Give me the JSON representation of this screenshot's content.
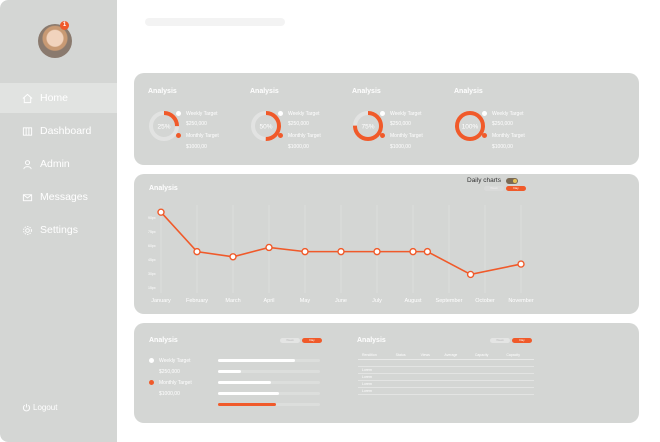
{
  "sidebar": {
    "items": [
      {
        "label": "Home",
        "icon": "home-icon",
        "active": true
      },
      {
        "label": "Dashboard",
        "icon": "columns-icon",
        "active": false
      },
      {
        "label": "Admin",
        "icon": "user-icon",
        "active": false
      },
      {
        "label": "Messages",
        "icon": "envelope-icon",
        "active": false
      },
      {
        "label": "Settings",
        "icon": "gear-icon",
        "active": false
      }
    ],
    "logout": "Logout",
    "badge": "1"
  },
  "stats": [
    {
      "title": "Analysis",
      "percent": "25%",
      "fraction": 0.25,
      "weekly_label": "Weekly Target",
      "weekly_value": "$250,000",
      "monthly_label": "Monthly Target",
      "monthly_value": "$1000,00"
    },
    {
      "title": "Analysis",
      "percent": "50%",
      "fraction": 0.5,
      "weekly_label": "Weekly Target",
      "weekly_value": "$250,000",
      "monthly_label": "Monthly Target",
      "monthly_value": "$1000,00"
    },
    {
      "title": "Analysis",
      "percent": "75%",
      "fraction": 0.75,
      "weekly_label": "Weekly Target",
      "weekly_value": "$250,000",
      "monthly_label": "Monthly Target",
      "monthly_value": "$1000,00"
    },
    {
      "title": "Analysis",
      "percent": "100%",
      "fraction": 1.0,
      "weekly_label": "Weekly Target",
      "weekly_value": "$250,000",
      "monthly_label": "Monthly Target",
      "monthly_value": "$1000,00"
    }
  ],
  "linechart": {
    "title": "Analysis",
    "toggle_label": "Daily charts",
    "pill_a": "Week",
    "pill_b": "Day"
  },
  "chart_data": {
    "type": "line",
    "categories": [
      "January",
      "February",
      "March",
      "April",
      "May",
      "June",
      "July",
      "August",
      "September",
      "October",
      "November"
    ],
    "x": [
      0,
      1,
      2,
      3,
      4,
      5,
      6,
      7,
      7.4,
      8.6,
      10
    ],
    "y": [
      90,
      52,
      47,
      56,
      52,
      52,
      52,
      52,
      52,
      30,
      40
    ],
    "ytick_labels": [
      "90px",
      "75px",
      "60px",
      "45px",
      "30px",
      "15px"
    ],
    "ylim": [
      15,
      95
    ],
    "grid": true,
    "color": "#f05a2a"
  },
  "bottom_left": {
    "title": "Analysis",
    "pill_a": "Week",
    "pill_b": "Day",
    "weekly_label": "Weekly Target",
    "weekly_value": "$250,000",
    "monthly_label": "Monthly Target",
    "monthly_value": "$1000,00",
    "bars": [
      {
        "fraction": 0.75,
        "color": "#ffffff"
      },
      {
        "fraction": 0.23,
        "color": "#ffffff"
      },
      {
        "fraction": 0.52,
        "color": "#ffffff"
      },
      {
        "fraction": 0.6,
        "color": "#ffffff"
      },
      {
        "fraction": 0.57,
        "color": "#f05a2a"
      }
    ]
  },
  "bottom_right": {
    "title": "Analysis",
    "pill_a": "Week",
    "pill_b": "Day",
    "headers": [
      "Rendition",
      "Status",
      "Views",
      "Average",
      "Capacity",
      "Capacity"
    ],
    "rows": [
      [
        "",
        "",
        "",
        "",
        "",
        ""
      ],
      [
        "Lorem",
        "",
        "",
        "",
        "",
        ""
      ],
      [
        "Lorem",
        "",
        "",
        "",
        "",
        ""
      ],
      [
        "Lorem",
        "",
        "",
        "",
        "",
        ""
      ],
      [
        "Lorem",
        "",
        "",
        "",
        "",
        ""
      ]
    ]
  },
  "colors": {
    "accent": "#f05a2a",
    "card": "#d4d6d4",
    "text": "#ffffff"
  }
}
